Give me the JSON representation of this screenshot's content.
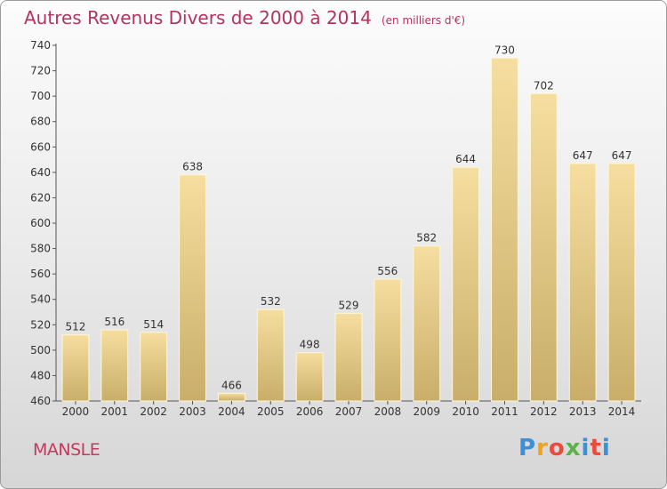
{
  "title": "Autres Revenus Divers de 2000 à 2014",
  "subtitle": "(en milliers d'€)",
  "city": "MANSLE",
  "logo": {
    "text": "Proxiti",
    "letters": [
      "P",
      "r",
      "o",
      "x",
      "i",
      "t",
      "i"
    ]
  },
  "colors": {
    "title": "#b5315e",
    "bar_light": "#f6dea0",
    "bar_dark": "#c8ae69"
  },
  "chart_data": {
    "type": "bar",
    "categories": [
      "2000",
      "2001",
      "2002",
      "2003",
      "2004",
      "2005",
      "2006",
      "2007",
      "2008",
      "2009",
      "2010",
      "2011",
      "2012",
      "2013",
      "2014"
    ],
    "values": [
      512,
      516,
      514,
      638,
      466,
      532,
      498,
      529,
      556,
      582,
      644,
      730,
      702,
      647,
      647
    ],
    "data_labels": [
      "512",
      "516",
      "514",
      "638",
      "466",
      "532",
      "498",
      "529",
      "556",
      "582",
      "644",
      "730",
      "702",
      "647",
      "647"
    ],
    "ylim": [
      460,
      740
    ],
    "yticks": [
      460,
      480,
      500,
      520,
      540,
      560,
      580,
      600,
      620,
      640,
      660,
      680,
      700,
      720,
      740
    ],
    "grid": false,
    "xlabel": "",
    "ylabel": ""
  }
}
